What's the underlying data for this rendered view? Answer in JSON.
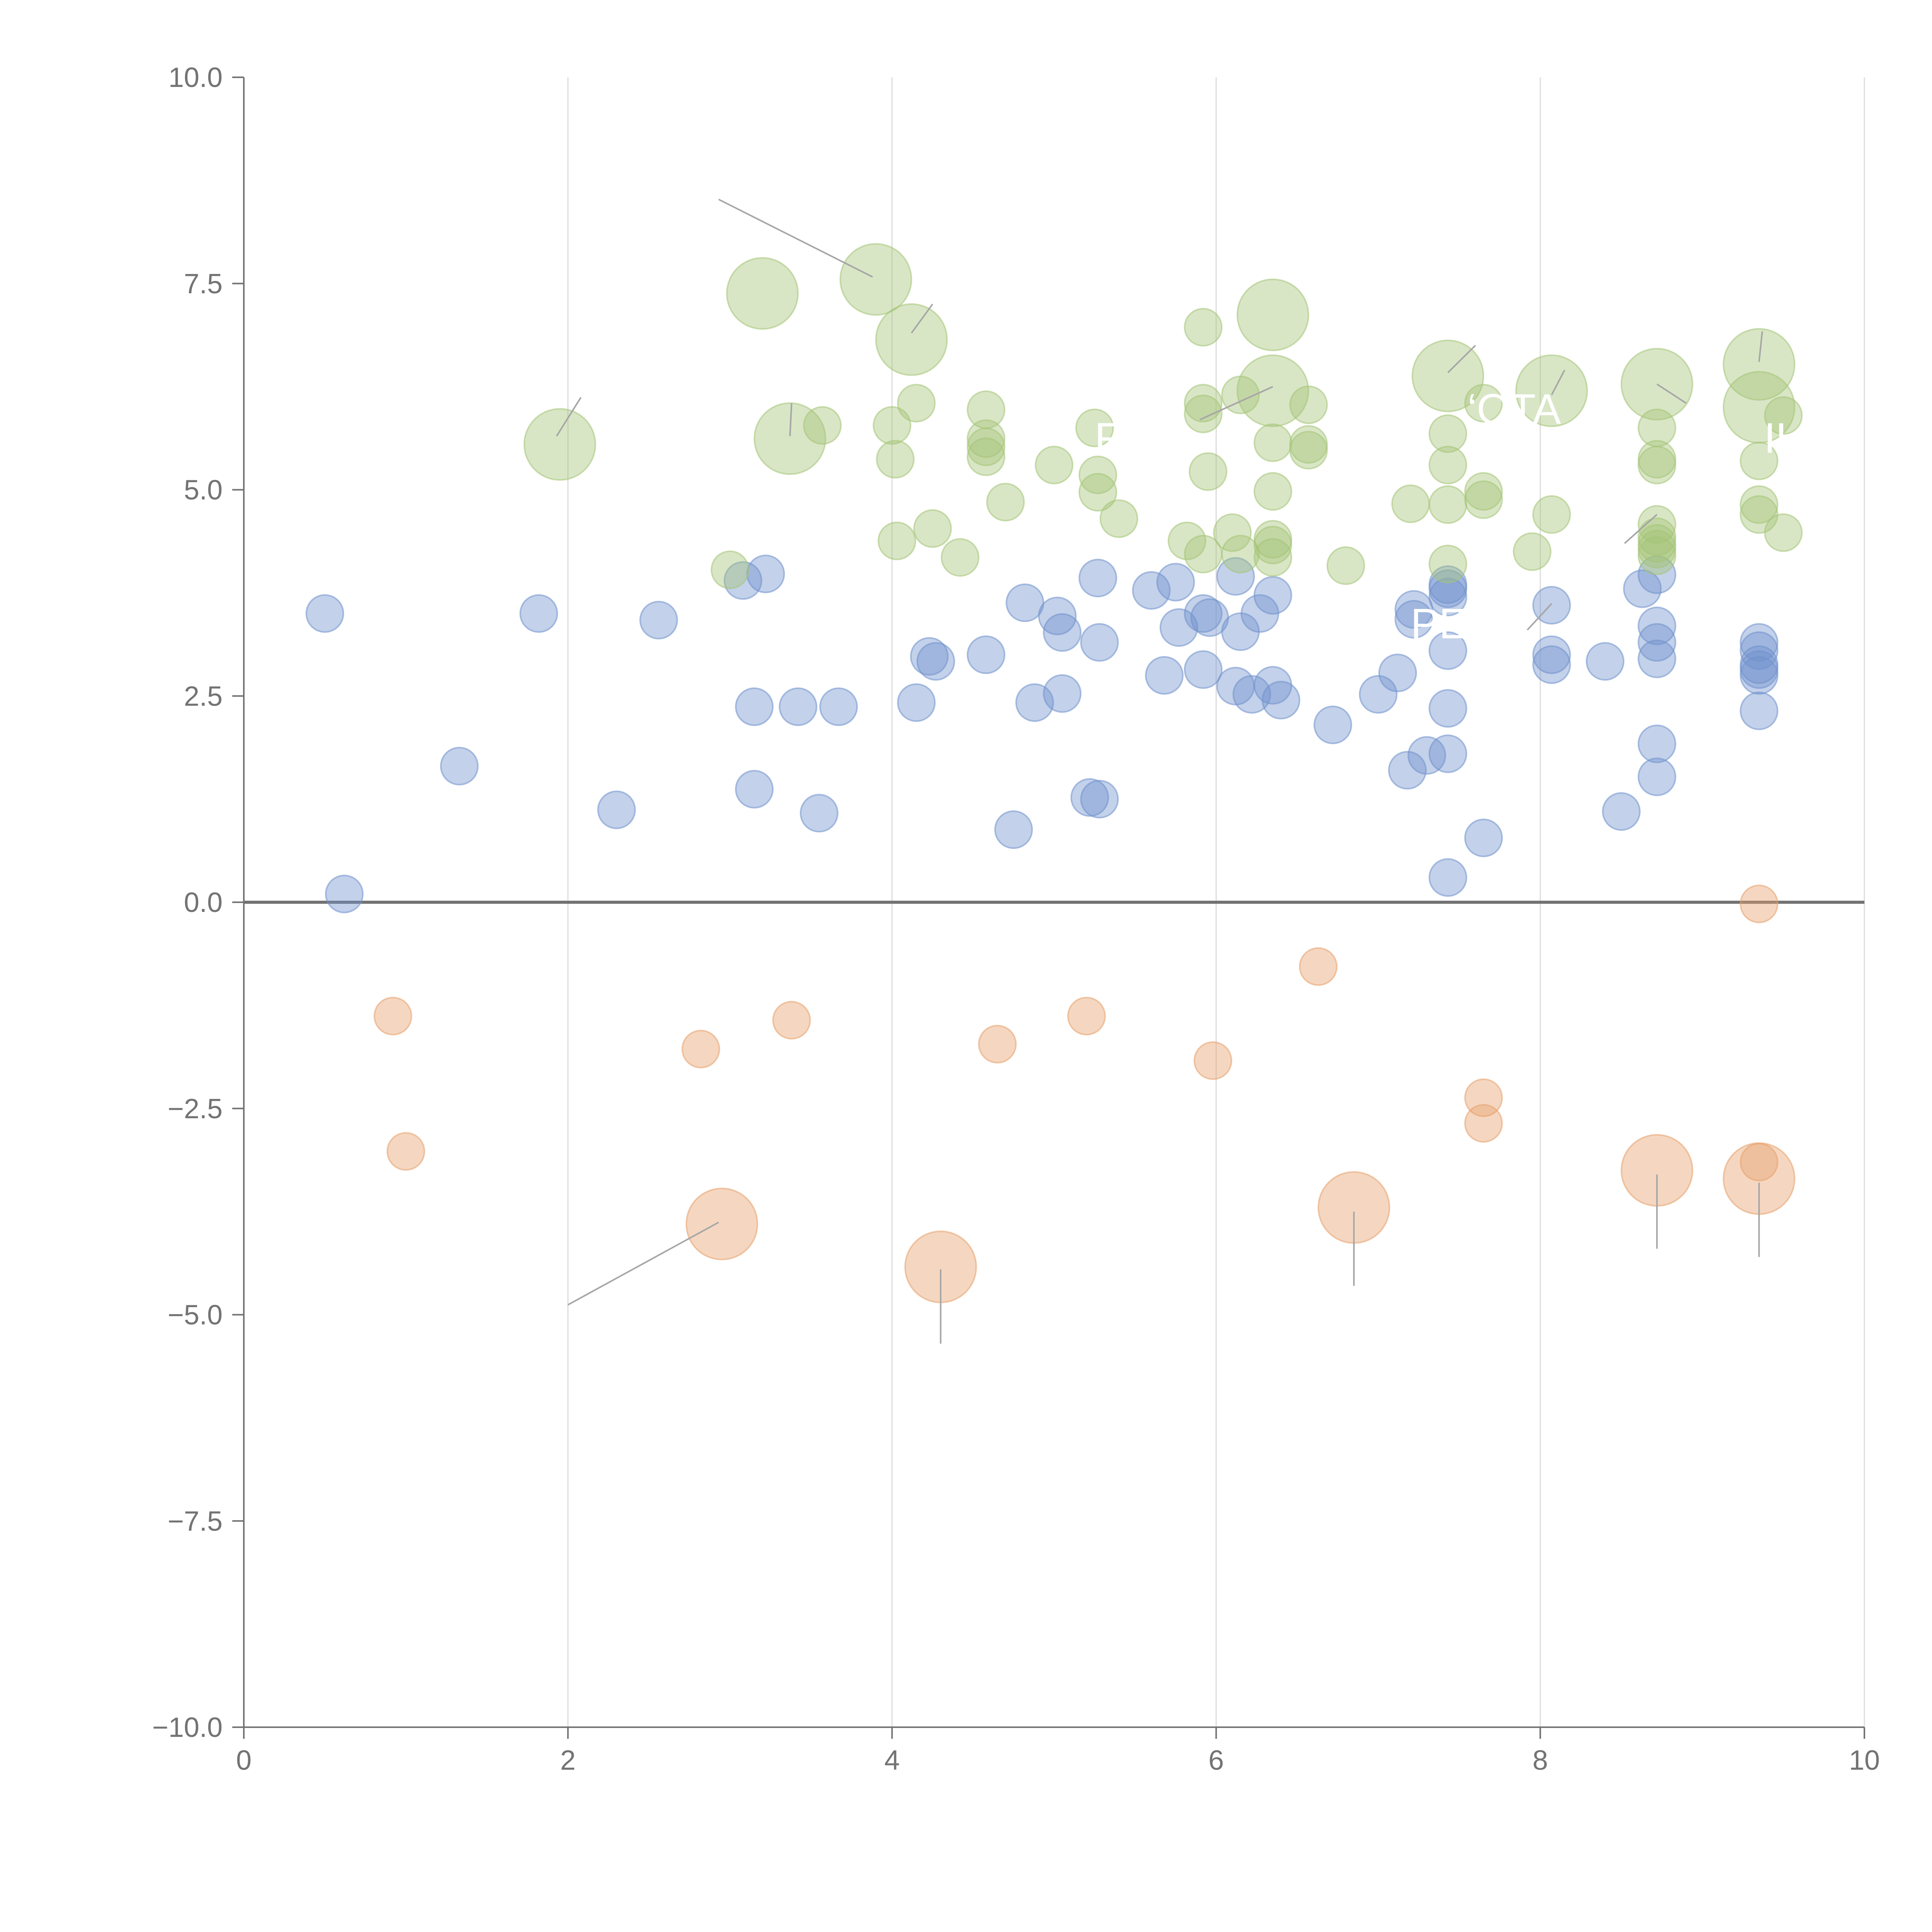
{
  "colors": {
    "blue": "#6f91cc",
    "green": "#a4c476",
    "orange": "#e6a06c",
    "axis": "#737373",
    "grid": "#dcdcdc",
    "leader": "#a6a6a6"
  },
  "chart_data": {
    "type": "scatter",
    "title": "",
    "xlabel": "",
    "ylabel": "",
    "xlim": [
      0,
      10
    ],
    "ylim": [
      -10,
      10
    ],
    "x_ticks": [
      "0",
      "2",
      "4",
      "6",
      "8",
      "10"
    ],
    "y_ticks": [
      "10.0",
      "7.5",
      "5.0",
      "2.5",
      "0.0",
      "−2.5",
      "−5.0",
      "−7.5",
      "−10.0"
    ],
    "vertical_grid": true,
    "horizontal_grid": false,
    "zero_line": true,
    "bubble_opacity": 0.42,
    "series": [
      {
        "color": "blue",
        "points": [
          [
            0.5,
            3.5,
            1
          ],
          [
            0.62,
            0.1,
            1
          ],
          [
            1.33,
            1.65,
            1
          ],
          [
            1.82,
            3.5,
            1
          ],
          [
            2.3,
            1.12,
            1
          ],
          [
            2.56,
            3.42,
            1
          ],
          [
            3.08,
            3.9,
            1
          ],
          [
            3.15,
            2.37,
            1
          ],
          [
            3.15,
            1.37,
            1
          ],
          [
            3.22,
            3.98,
            1
          ],
          [
            3.42,
            2.37,
            1
          ],
          [
            3.55,
            1.08,
            1
          ],
          [
            3.67,
            2.37,
            1
          ],
          [
            4.15,
            2.42,
            1
          ],
          [
            4.23,
            2.98,
            1
          ],
          [
            4.27,
            2.92,
            1
          ],
          [
            4.58,
            3.0,
            1
          ],
          [
            4.75,
            0.88,
            1
          ],
          [
            4.82,
            3.63,
            1
          ],
          [
            4.88,
            2.42,
            1
          ],
          [
            5.02,
            3.47,
            1
          ],
          [
            5.05,
            3.27,
            1
          ],
          [
            5.05,
            2.53,
            1
          ],
          [
            5.22,
            1.27,
            1
          ],
          [
            5.27,
            3.93,
            1
          ],
          [
            5.28,
            1.25,
            1
          ],
          [
            5.28,
            3.15,
            1
          ],
          [
            5.6,
            3.78,
            1
          ],
          [
            5.68,
            2.75,
            1
          ],
          [
            5.75,
            3.88,
            1
          ],
          [
            5.77,
            3.33,
            1
          ],
          [
            5.92,
            3.5,
            1
          ],
          [
            5.92,
            2.82,
            1
          ],
          [
            5.96,
            3.45,
            1
          ],
          [
            6.12,
            3.95,
            1
          ],
          [
            6.12,
            2.62,
            1
          ],
          [
            6.15,
            3.28,
            1
          ],
          [
            6.22,
            2.52,
            1
          ],
          [
            6.27,
            3.5,
            1
          ],
          [
            6.35,
            2.63,
            1
          ],
          [
            6.35,
            3.72,
            1
          ],
          [
            6.4,
            2.45,
            1
          ],
          [
            6.72,
            2.15,
            1
          ],
          [
            7.0,
            2.52,
            1
          ],
          [
            7.12,
            2.78,
            1
          ],
          [
            7.18,
            1.6,
            1
          ],
          [
            7.22,
            3.55,
            1
          ],
          [
            7.22,
            3.43,
            1
          ],
          [
            7.3,
            1.78,
            1
          ],
          [
            7.43,
            3.85,
            1
          ],
          [
            7.43,
            3.7,
            1
          ],
          [
            7.43,
            3.8,
            1
          ],
          [
            7.43,
            3.05,
            1
          ],
          [
            7.43,
            2.35,
            1
          ],
          [
            7.43,
            1.8,
            1
          ],
          [
            7.43,
            0.3,
            1
          ],
          [
            7.65,
            0.78,
            1
          ],
          [
            8.07,
            3.6,
            1
          ],
          [
            8.07,
            3.0,
            1
          ],
          [
            8.07,
            2.88,
            1
          ],
          [
            8.4,
            2.92,
            1
          ],
          [
            8.5,
            1.1,
            1
          ],
          [
            8.63,
            3.8,
            1
          ],
          [
            8.72,
            3.97,
            1
          ],
          [
            8.72,
            3.35,
            1
          ],
          [
            8.72,
            3.15,
            1
          ],
          [
            8.72,
            2.95,
            1
          ],
          [
            8.72,
            1.92,
            1
          ],
          [
            8.72,
            1.52,
            1
          ],
          [
            9.35,
            3.15,
            1
          ],
          [
            9.35,
            3.05,
            1
          ],
          [
            9.35,
            2.88,
            1
          ],
          [
            9.35,
            2.82,
            1
          ],
          [
            9.35,
            2.75,
            1
          ],
          [
            9.35,
            2.32,
            1
          ]
        ]
      },
      {
        "color": "green",
        "points": [
          [
            1.95,
            5.55,
            2
          ],
          [
            3.0,
            4.03,
            1
          ],
          [
            3.2,
            7.38,
            2
          ],
          [
            3.37,
            5.62,
            2
          ],
          [
            3.57,
            5.78,
            1
          ],
          [
            3.9,
            7.55,
            2
          ],
          [
            4.0,
            5.78,
            1
          ],
          [
            4.02,
            5.37,
            1
          ],
          [
            4.03,
            4.38,
            1
          ],
          [
            4.12,
            6.82,
            2
          ],
          [
            4.15,
            6.05,
            1
          ],
          [
            4.25,
            4.53,
            1
          ],
          [
            4.42,
            4.18,
            1
          ],
          [
            4.58,
            5.97,
            1
          ],
          [
            4.58,
            5.62,
            1
          ],
          [
            4.58,
            5.52,
            1
          ],
          [
            4.58,
            5.4,
            1
          ],
          [
            4.7,
            4.85,
            1
          ],
          [
            5.0,
            5.3,
            1
          ],
          [
            5.25,
            5.75,
            1
          ],
          [
            5.27,
            5.18,
            1
          ],
          [
            5.27,
            4.97,
            1
          ],
          [
            5.4,
            4.65,
            1
          ],
          [
            5.82,
            4.38,
            1
          ],
          [
            5.92,
            6.97,
            1
          ],
          [
            5.92,
            6.05,
            1
          ],
          [
            5.92,
            5.92,
            1
          ],
          [
            5.92,
            4.22,
            1
          ],
          [
            5.95,
            5.22,
            1
          ],
          [
            6.1,
            4.48,
            1
          ],
          [
            6.15,
            6.15,
            1
          ],
          [
            6.15,
            4.22,
            1
          ],
          [
            6.35,
            7.12,
            2
          ],
          [
            6.35,
            6.2,
            2
          ],
          [
            6.35,
            5.57,
            1
          ],
          [
            6.35,
            4.98,
            1
          ],
          [
            6.35,
            4.4,
            1
          ],
          [
            6.35,
            4.33,
            1
          ],
          [
            6.35,
            4.18,
            1
          ],
          [
            6.57,
            6.03,
            1
          ],
          [
            6.57,
            5.55,
            1
          ],
          [
            6.57,
            5.48,
            1
          ],
          [
            6.8,
            4.08,
            1
          ],
          [
            7.2,
            4.83,
            1
          ],
          [
            7.43,
            6.38,
            2
          ],
          [
            7.43,
            5.68,
            1
          ],
          [
            7.43,
            5.3,
            1
          ],
          [
            7.43,
            4.82,
            1
          ],
          [
            7.43,
            4.1,
            1
          ],
          [
            7.65,
            6.05,
            1
          ],
          [
            7.65,
            4.98,
            1
          ],
          [
            7.65,
            4.88,
            1
          ],
          [
            7.95,
            4.25,
            1
          ],
          [
            8.07,
            6.2,
            2
          ],
          [
            8.07,
            4.7,
            1
          ],
          [
            8.72,
            6.28,
            2
          ],
          [
            8.72,
            5.75,
            1
          ],
          [
            8.72,
            5.37,
            1
          ],
          [
            8.72,
            5.3,
            1
          ],
          [
            8.72,
            4.58,
            1
          ],
          [
            8.72,
            4.43,
            1
          ],
          [
            8.72,
            4.35,
            1
          ],
          [
            8.72,
            4.28,
            1
          ],
          [
            8.72,
            4.2,
            1
          ],
          [
            9.35,
            6.52,
            2
          ],
          [
            9.35,
            6.0,
            2
          ],
          [
            9.35,
            5.35,
            1
          ],
          [
            9.35,
            4.82,
            1
          ],
          [
            9.35,
            4.7,
            1
          ],
          [
            9.5,
            5.9,
            1
          ],
          [
            9.5,
            4.48,
            1
          ]
        ]
      },
      {
        "color": "orange",
        "points": [
          [
            0.92,
            -1.38,
            1
          ],
          [
            1.0,
            -3.02,
            1
          ],
          [
            2.82,
            -1.78,
            1
          ],
          [
            2.95,
            -3.9,
            2
          ],
          [
            3.38,
            -1.43,
            1
          ],
          [
            4.3,
            -4.42,
            2
          ],
          [
            4.65,
            -1.72,
            1
          ],
          [
            5.2,
            -1.38,
            1
          ],
          [
            5.98,
            -1.92,
            1
          ],
          [
            6.63,
            -0.78,
            1
          ],
          [
            6.85,
            -3.7,
            2
          ],
          [
            7.65,
            -2.37,
            1
          ],
          [
            7.65,
            -2.68,
            1
          ],
          [
            8.72,
            -3.25,
            2
          ],
          [
            9.35,
            -3.35,
            2
          ],
          [
            9.35,
            -3.15,
            1
          ],
          [
            9.35,
            -0.02,
            1
          ]
        ]
      }
    ],
    "leader_lines": [
      [
        [
          2.93,
          8.52
        ],
        [
          3.88,
          7.58
        ]
      ],
      [
        [
          1.93,
          5.65
        ],
        [
          2.08,
          6.12
        ]
      ],
      [
        [
          3.37,
          5.65
        ],
        [
          3.38,
          6.05
        ]
      ],
      [
        [
          4.12,
          6.9
        ],
        [
          4.25,
          7.25
        ]
      ],
      [
        [
          2.93,
          -3.88
        ],
        [
          2.0,
          -4.88
        ]
      ],
      [
        [
          4.3,
          -4.45
        ],
        [
          4.3,
          -5.35
        ]
      ],
      [
        [
          6.85,
          -3.75
        ],
        [
          6.85,
          -4.65
        ]
      ],
      [
        [
          8.72,
          -3.3
        ],
        [
          8.72,
          -4.2
        ]
      ],
      [
        [
          9.35,
          -3.4
        ],
        [
          9.35,
          -4.3
        ]
      ],
      [
        [
          6.35,
          6.25
        ],
        [
          5.9,
          5.85
        ]
      ],
      [
        [
          7.43,
          6.42
        ],
        [
          7.6,
          6.75
        ]
      ],
      [
        [
          8.72,
          6.28
        ],
        [
          8.9,
          6.05
        ]
      ],
      [
        [
          9.35,
          6.55
        ],
        [
          9.37,
          6.92
        ]
      ],
      [
        [
          8.07,
          6.15
        ],
        [
          8.15,
          6.45
        ]
      ],
      [
        [
          8.72,
          4.7
        ],
        [
          8.52,
          4.35
        ]
      ],
      [
        [
          8.07,
          3.62
        ],
        [
          7.92,
          3.3
        ]
      ]
    ],
    "ghost_labels": [
      {
        "text": "F",
        "x": 5.25,
        "y": 5.45
      },
      {
        "text": "‘OTA",
        "x": 7.55,
        "y": 5.8
      },
      {
        "text": "IL",
        "x": 9.38,
        "y": 5.45
      },
      {
        "text": "PE’ R·",
        "x": 7.2,
        "y": 3.2
      }
    ]
  }
}
